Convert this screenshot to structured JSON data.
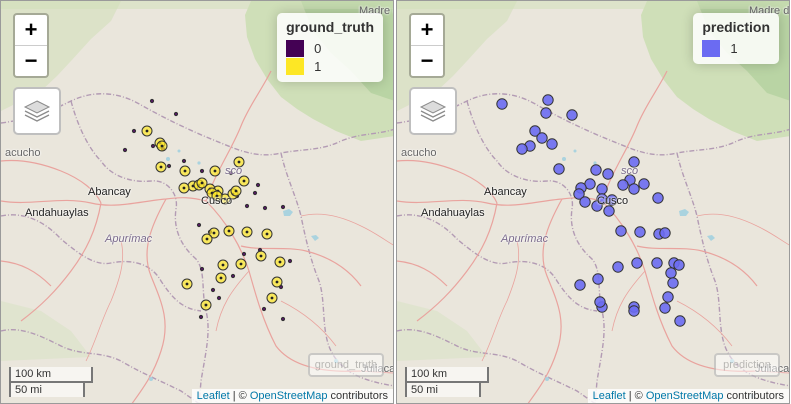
{
  "colors": {
    "land": "#eae6dc",
    "forest": "#cfdfb8",
    "forest_dark": "#b9d4a4",
    "border": "#b39bb4",
    "road": "#e9a39e",
    "water": "#aad3df",
    "gt_0": "#440154",
    "gt_1": "#fde725",
    "pred_1": "#6b6bf2"
  },
  "left": {
    "legend": {
      "title": "ground_truth",
      "items": [
        {
          "label": "0",
          "color": "#440154"
        },
        {
          "label": "1",
          "color": "#fde725"
        }
      ]
    },
    "minimap_label": "ground_truth",
    "labels": {
      "cusco": "Cusco",
      "abancay": "Abancay",
      "andahuaylas": "Andahuaylas",
      "apurimac": "Apurímac",
      "ayacucho": "acucho",
      "juliaca": "Juliaca",
      "madre": "Madre de",
      "cusco_region": "sco"
    }
  },
  "right": {
    "legend": {
      "title": "prediction",
      "items": [
        {
          "label": "1",
          "color": "#6b6bf2"
        }
      ]
    },
    "minimap_label": "prediction",
    "labels": {
      "cusco": "Cusco",
      "abancay": "Abancay",
      "andahuaylas": "Andahuaylas",
      "apurimac": "Apurímac",
      "ayacucho": "acucho",
      "juliaca": "Juliaca",
      "madre": "Madre de",
      "cusco_region": "sco"
    }
  },
  "controls": {
    "zoom_in": "+",
    "zoom_out": "−"
  },
  "scale": {
    "km": "100 km",
    "mi": "50 mi"
  },
  "attribution": {
    "leaflet": "Leaflet",
    "sep": " | © ",
    "osm": "OpenStreetMap",
    "contributors": " contributors"
  },
  "points": {
    "ground_truth_1": [
      [
        146,
        130
      ],
      [
        159,
        142
      ],
      [
        161,
        145
      ],
      [
        160,
        166
      ],
      [
        184,
        170
      ],
      [
        192,
        185
      ],
      [
        198,
        184
      ],
      [
        183,
        187
      ],
      [
        201,
        182
      ],
      [
        214,
        170
      ],
      [
        209,
        188
      ],
      [
        217,
        190
      ],
      [
        211,
        192
      ],
      [
        224,
        198
      ],
      [
        216,
        195
      ],
      [
        232,
        193
      ],
      [
        243,
        180
      ],
      [
        238,
        161
      ],
      [
        235,
        190
      ],
      [
        228,
        230
      ],
      [
        246,
        231
      ],
      [
        266,
        233
      ],
      [
        213,
        232
      ],
      [
        206,
        238
      ],
      [
        279,
        261
      ],
      [
        240,
        263
      ],
      [
        260,
        255
      ],
      [
        222,
        264
      ],
      [
        220,
        277
      ],
      [
        186,
        283
      ],
      [
        276,
        281
      ],
      [
        271,
        297
      ],
      [
        205,
        304
      ]
    ],
    "ground_truth_0": [
      [
        151,
        100
      ],
      [
        175,
        113
      ],
      [
        133,
        130
      ],
      [
        162,
        148
      ],
      [
        124,
        149
      ],
      [
        152,
        145
      ],
      [
        168,
        165
      ],
      [
        183,
        160
      ],
      [
        201,
        170
      ],
      [
        236,
        195
      ],
      [
        257,
        184
      ],
      [
        230,
        172
      ],
      [
        254,
        192
      ],
      [
        246,
        205
      ],
      [
        264,
        207
      ],
      [
        282,
        206
      ],
      [
        198,
        224
      ],
      [
        209,
        231
      ],
      [
        259,
        249
      ],
      [
        201,
        268
      ],
      [
        243,
        253
      ],
      [
        232,
        275
      ],
      [
        289,
        260
      ],
      [
        280,
        286
      ],
      [
        263,
        308
      ],
      [
        282,
        318
      ],
      [
        212,
        289
      ],
      [
        218,
        297
      ],
      [
        200,
        316
      ]
    ],
    "prediction_1": [
      [
        105,
        103
      ],
      [
        151,
        99
      ],
      [
        149,
        112
      ],
      [
        175,
        114
      ],
      [
        138,
        130
      ],
      [
        145,
        137
      ],
      [
        133,
        145
      ],
      [
        125,
        148
      ],
      [
        155,
        143
      ],
      [
        162,
        168
      ],
      [
        199,
        169
      ],
      [
        193,
        183
      ],
      [
        211,
        173
      ],
      [
        237,
        161
      ],
      [
        233,
        179
      ],
      [
        226,
        184
      ],
      [
        237,
        188
      ],
      [
        247,
        183
      ],
      [
        261,
        197
      ],
      [
        205,
        188
      ],
      [
        184,
        187
      ],
      [
        182,
        193
      ],
      [
        188,
        201
      ],
      [
        205,
        198
      ],
      [
        215,
        199
      ],
      [
        200,
        205
      ],
      [
        212,
        210
      ],
      [
        224,
        230
      ],
      [
        243,
        231
      ],
      [
        262,
        233
      ],
      [
        268,
        232
      ],
      [
        221,
        266
      ],
      [
        240,
        262
      ],
      [
        260,
        262
      ],
      [
        277,
        262
      ],
      [
        282,
        264
      ],
      [
        274,
        272
      ],
      [
        201,
        278
      ],
      [
        183,
        284
      ],
      [
        205,
        306
      ],
      [
        203,
        301
      ],
      [
        237,
        306
      ],
      [
        237,
        310
      ],
      [
        268,
        307
      ],
      [
        283,
        320
      ],
      [
        276,
        282
      ],
      [
        271,
        296
      ]
    ]
  }
}
